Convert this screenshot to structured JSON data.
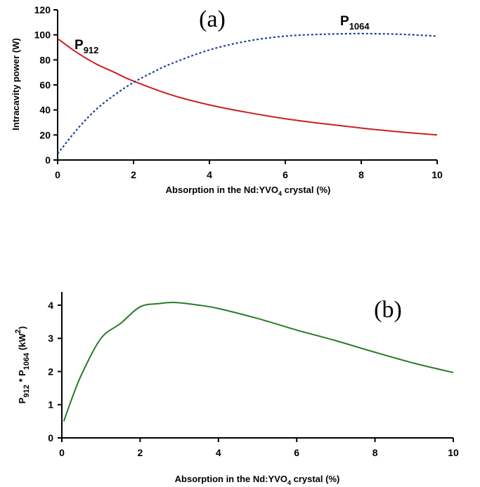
{
  "chart_data": [
    {
      "type": "line",
      "panel_label": "(a)",
      "ylabel": "Intracavity power (W)",
      "xlabel": {
        "prefix": "Absorption in the  Nd:YVO",
        "sub": "4",
        "suffix": " crystal (%)"
      },
      "xlim": [
        0,
        10
      ],
      "ylim": [
        0,
        120
      ],
      "xticks": [
        "0",
        "2",
        "4",
        "6",
        "8",
        "10"
      ],
      "yticks": [
        "0",
        "20",
        "40",
        "60",
        "80",
        "100",
        "120"
      ],
      "series": [
        {
          "name": {
            "main": "P",
            "sub": "912"
          },
          "color": "#cc1f1f",
          "style": "solid",
          "x": [
            0,
            0.5,
            1,
            1.5,
            2,
            3,
            4,
            5,
            6,
            7,
            8,
            9,
            10
          ],
          "y": [
            97,
            86,
            77,
            70,
            63,
            52,
            44,
            38,
            33,
            29,
            25.5,
            22.5,
            20
          ]
        },
        {
          "name": {
            "main": "P",
            "sub": "1064"
          },
          "color": "#1f3f99",
          "style": "dotted",
          "x": [
            0,
            0.5,
            1,
            1.5,
            2,
            2.5,
            3,
            4,
            5,
            6,
            7,
            8,
            9,
            10
          ],
          "y": [
            5,
            24,
            40,
            52,
            62,
            70,
            77,
            88,
            95,
            99,
            100.5,
            101,
            100.5,
            99
          ]
        }
      ]
    },
    {
      "type": "line",
      "panel_label": "(b)",
      "ylabel": {
        "p1": "P",
        "s1": "912",
        "mid": " * P",
        "s2": "1064",
        "unit": "  (kW",
        "sup": "2",
        "close": ")"
      },
      "xlabel": {
        "prefix": "Absorption in the  Nd:YVO",
        "sub": "4",
        "suffix": " crystal (%)"
      },
      "xlim": [
        0,
        10
      ],
      "ylim": [
        0,
        4.4
      ],
      "xticks": [
        "0",
        "2",
        "4",
        "6",
        "8",
        "10"
      ],
      "yticks": [
        "0",
        "1",
        "2",
        "3",
        "4"
      ],
      "series": [
        {
          "name": "",
          "color": "#2a7a2a",
          "style": "solid",
          "x": [
            0.05,
            0.2,
            0.5,
            1,
            1.5,
            2,
            2.5,
            2.9,
            3.5,
            4,
            5,
            6,
            7,
            8,
            9,
            10
          ],
          "y": [
            0.5,
            1.0,
            1.9,
            3.0,
            3.45,
            3.95,
            4.05,
            4.08,
            4.0,
            3.9,
            3.6,
            3.25,
            2.93,
            2.58,
            2.25,
            1.97
          ]
        }
      ]
    }
  ]
}
